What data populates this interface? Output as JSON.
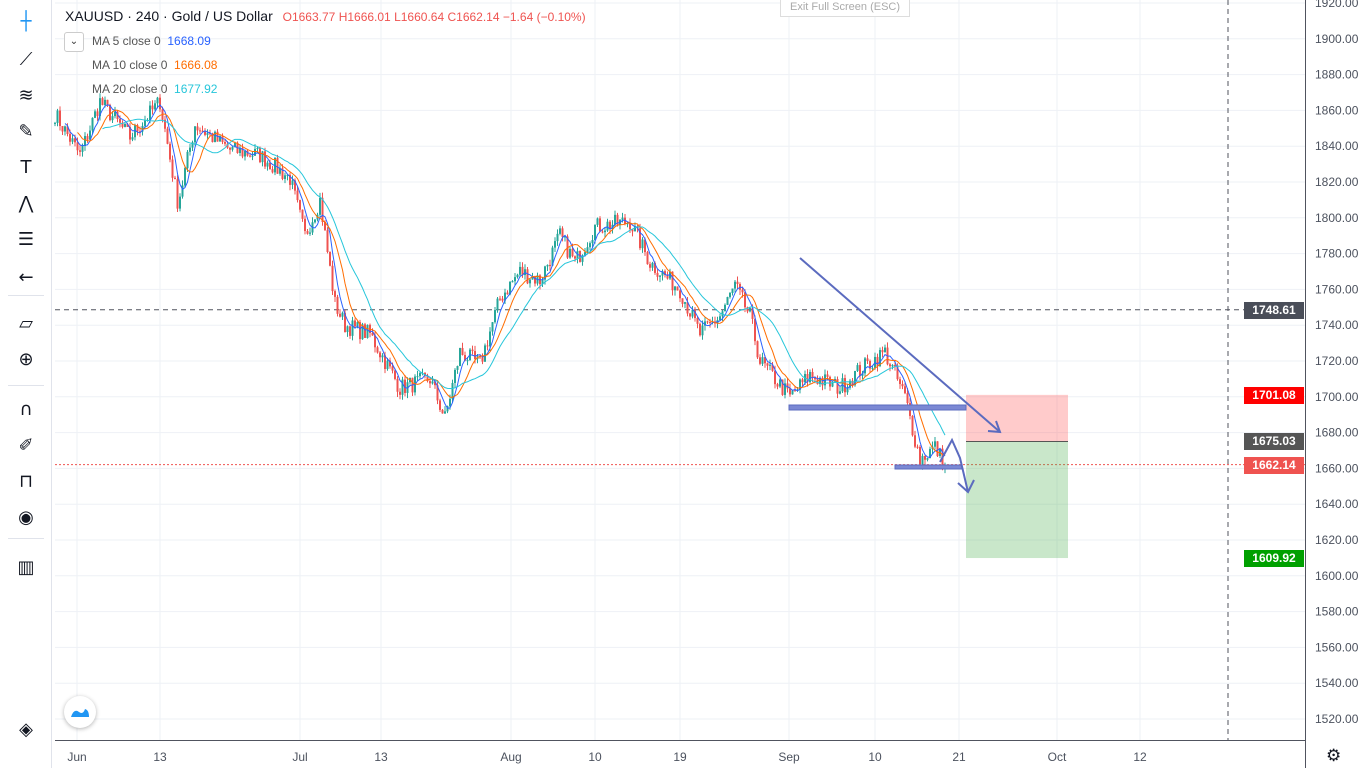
{
  "header": {
    "symbol": "XAUUSD · 240 · Gold / US Dollar",
    "open": "O1663.77",
    "high": "H1666.01",
    "low": "L1660.64",
    "close": "C1662.14",
    "change": "−1.64 (−0.10%)",
    "exit_fullscreen": "Exit Full Screen (ESC)"
  },
  "indicators": [
    {
      "label": "MA 5 close 0",
      "value": "1668.09",
      "color": "#2962ff"
    },
    {
      "label": "MA 10 close 0",
      "value": "1666.08",
      "color": "#ff6d00"
    },
    {
      "label": "MA 20 close 0",
      "value": "1677.92",
      "color": "#26c6da"
    }
  ],
  "price_tags": [
    {
      "value": "1748.61",
      "price": 1748.61,
      "color": "#4a4e59"
    },
    {
      "value": "1701.08",
      "price": 1701.08,
      "color": "#ff0000"
    },
    {
      "value": "1675.03",
      "price": 1675.03,
      "color": "#555555"
    },
    {
      "value": "1662.14",
      "price": 1662.14,
      "color": "#ef5350"
    },
    {
      "value": "1609.92",
      "price": 1609.92,
      "color": "#00a000"
    }
  ],
  "toolbar": [
    "crosshair-icon",
    "trend-line-icon",
    "fib-icon",
    "brush-icon",
    "text-icon",
    "pattern-icon",
    "prediction-icon",
    "back-arrow-icon",
    "ruler-icon",
    "zoom-in-icon",
    "magnet-icon",
    "lock-drawing-icon",
    "unlock-icon",
    "eye-icon",
    "trash-icon"
  ],
  "chart_data": {
    "type": "candlestick",
    "title": "XAUUSD · 240 · Gold / US Dollar",
    "ylim": [
      1510,
      1925
    ],
    "y_ticks": [
      1520,
      1540,
      1560,
      1580,
      1600,
      1620,
      1640,
      1660,
      1680,
      1700,
      1720,
      1740,
      1760,
      1780,
      1800,
      1820,
      1840,
      1860,
      1880,
      1900,
      1920
    ],
    "x_ticks": [
      {
        "label": "Jun",
        "t": 0
      },
      {
        "label": "13",
        "t": 8.3
      },
      {
        "label": "Jul",
        "t": 22.3
      },
      {
        "label": "13",
        "t": 30.4
      },
      {
        "label": "Aug",
        "t": 43.4
      },
      {
        "label": "10",
        "t": 51.8
      },
      {
        "label": "19",
        "t": 60.3
      },
      {
        "label": "Sep",
        "t": 71.2
      },
      {
        "label": "10",
        "t": 79.8
      },
      {
        "label": "21",
        "t": 88.2
      },
      {
        "label": "Oct",
        "t": 98
      },
      {
        "label": "12",
        "t": 106.3
      }
    ],
    "close_path_t_price": [
      [
        -2.2,
        1858
      ],
      [
        0.3,
        1835
      ],
      [
        2.3,
        1865
      ],
      [
        5.3,
        1845
      ],
      [
        8.3,
        1865
      ],
      [
        10.1,
        1808
      ],
      [
        11.8,
        1852
      ],
      [
        15.3,
        1838
      ],
      [
        18.3,
        1835
      ],
      [
        21.3,
        1822
      ],
      [
        22.8,
        1790
      ],
      [
        24.3,
        1810
      ],
      [
        25.8,
        1752
      ],
      [
        26.8,
        1740
      ],
      [
        29.3,
        1735
      ],
      [
        31.3,
        1715
      ],
      [
        32.3,
        1705
      ],
      [
        35.3,
        1710
      ],
      [
        36.8,
        1688
      ],
      [
        38.3,
        1725
      ],
      [
        40.3,
        1718
      ],
      [
        42.3,
        1755
      ],
      [
        44.3,
        1770
      ],
      [
        46.3,
        1765
      ],
      [
        48.3,
        1790
      ],
      [
        49.8,
        1775
      ],
      [
        51.8,
        1795
      ],
      [
        55.3,
        1798
      ],
      [
        57.3,
        1775
      ],
      [
        60.3,
        1760
      ],
      [
        62.3,
        1735
      ],
      [
        64.3,
        1745
      ],
      [
        65.8,
        1762
      ],
      [
        67.3,
        1745
      ],
      [
        68.3,
        1720
      ],
      [
        71.3,
        1700
      ],
      [
        73.3,
        1712
      ],
      [
        76.3,
        1705
      ],
      [
        78.3,
        1715
      ],
      [
        80.8,
        1725
      ],
      [
        82.8,
        1700
      ],
      [
        84.3,
        1665
      ],
      [
        85.8,
        1672
      ],
      [
        86.8,
        1662
      ]
    ],
    "last_close": 1662.14,
    "up_color": "#26a69a",
    "down_color": "#ef5350"
  }
}
